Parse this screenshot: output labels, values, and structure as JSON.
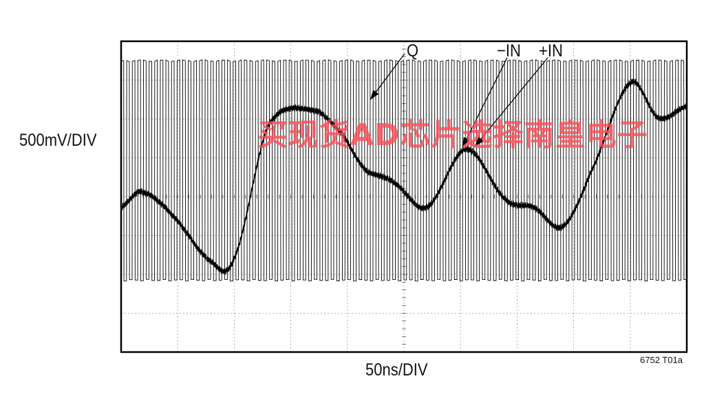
{
  "chart_data": {
    "type": "line",
    "title": "",
    "xlabel": "50ns/DIV",
    "ylabel": "500mV/DIV",
    "figure_id": "6752 T01a",
    "x_divisions": 10,
    "y_divisions": 8,
    "grid": true,
    "series": [
      {
        "name": "Q",
        "kind": "square-wave",
        "cycles": 101,
        "high_div": 7.5,
        "low_div": 1.85,
        "color": "#000000"
      },
      {
        "name": "−IN",
        "color": "#000000",
        "x_div": [
          0,
          0.35,
          0.9,
          1.6,
          2.0,
          2.6,
          3.4,
          3.9,
          4.3,
          4.6,
          4.85,
          5.4,
          6.1,
          6.8,
          7.3,
          7.8,
          8.3,
          9.0,
          9.5,
          10.0
        ],
        "y_div": [
          3.7,
          4.1,
          3.5,
          2.3,
          2.4,
          5.8,
          6.2,
          5.6,
          4.7,
          4.5,
          4.3,
          3.7,
          5.2,
          3.9,
          3.7,
          3.2,
          4.6,
          6.9,
          6.0,
          6.3
        ]
      },
      {
        "name": "+IN",
        "color": "#000000",
        "x_div": [
          0,
          0.35,
          0.9,
          1.6,
          2.0,
          2.6,
          3.4,
          3.9,
          4.3,
          4.6,
          4.85,
          5.4,
          6.1,
          6.8,
          7.3,
          7.8,
          8.3,
          9.0,
          9.5,
          10.0
        ],
        "y_div": [
          3.75,
          4.15,
          3.55,
          2.35,
          2.45,
          5.85,
          6.25,
          5.65,
          4.75,
          4.55,
          4.35,
          3.75,
          5.25,
          3.95,
          3.75,
          3.25,
          4.65,
          6.95,
          6.05,
          6.35
        ]
      }
    ],
    "annotations": [
      {
        "text": "Q",
        "target_series": "Q"
      },
      {
        "text": "−IN",
        "target_series": "−IN"
      },
      {
        "text": "+IN",
        "target_series": "+IN"
      }
    ]
  },
  "watermark": "买现货AD芯片选择南皇电子"
}
